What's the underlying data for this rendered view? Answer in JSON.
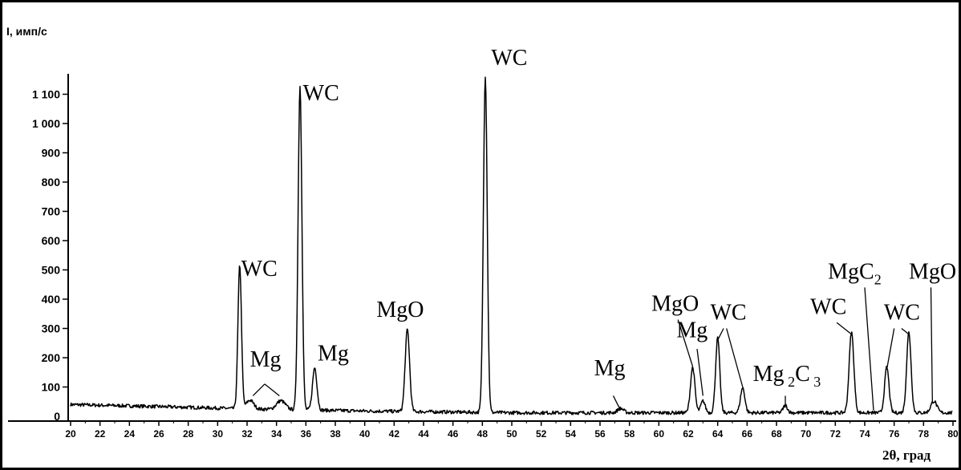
{
  "chart_data": {
    "type": "line",
    "ylabel": "I, имп/с",
    "xlabel": "2θ, град",
    "xlim": [
      20,
      80
    ],
    "ylim": [
      0,
      1150
    ],
    "x_ticks": [
      20,
      22,
      24,
      26,
      28,
      30,
      32,
      34,
      36,
      38,
      40,
      42,
      44,
      46,
      48,
      50,
      52,
      54,
      56,
      58,
      60,
      62,
      64,
      66,
      68,
      70,
      72,
      74,
      76,
      78,
      80
    ],
    "y_ticks": [
      {
        "value": 100,
        "label": "100"
      },
      {
        "value": 200,
        "label": "200"
      },
      {
        "value": 300,
        "label": "300"
      },
      {
        "value": 400,
        "label": "400"
      },
      {
        "value": 500,
        "label": "500"
      },
      {
        "value": 600,
        "label": "600"
      },
      {
        "value": 700,
        "label": "700"
      },
      {
        "value": 800,
        "label": "800"
      },
      {
        "value": 900,
        "label": "900"
      },
      {
        "value": 1000,
        "label": "1 000"
      },
      {
        "value": 1100,
        "label": "1 100"
      }
    ],
    "baseline": [
      [
        20,
        40
      ],
      [
        26,
        33
      ],
      [
        30,
        28
      ],
      [
        32,
        25
      ],
      [
        40,
        18
      ],
      [
        50,
        12
      ],
      [
        60,
        12
      ],
      [
        70,
        12
      ],
      [
        80,
        12
      ]
    ],
    "peaks": [
      {
        "x": 31.5,
        "y": 490,
        "w": 0.12
      },
      {
        "x": 32.2,
        "y": 30,
        "w": 0.25
      },
      {
        "x": 34.3,
        "y": 30,
        "w": 0.3
      },
      {
        "x": 35.6,
        "y": 1105,
        "w": 0.13
      },
      {
        "x": 36.6,
        "y": 145,
        "w": 0.15
      },
      {
        "x": 42.9,
        "y": 280,
        "w": 0.15
      },
      {
        "x": 48.2,
        "y": 1150,
        "w": 0.13
      },
      {
        "x": 57.4,
        "y": 15,
        "w": 0.2
      },
      {
        "x": 62.3,
        "y": 155,
        "w": 0.15
      },
      {
        "x": 63.0,
        "y": 40,
        "w": 0.15
      },
      {
        "x": 64.0,
        "y": 255,
        "w": 0.14
      },
      {
        "x": 65.7,
        "y": 85,
        "w": 0.15
      },
      {
        "x": 68.6,
        "y": 25,
        "w": 0.15
      },
      {
        "x": 73.1,
        "y": 275,
        "w": 0.16
      },
      {
        "x": 75.5,
        "y": 155,
        "w": 0.15
      },
      {
        "x": 77.0,
        "y": 275,
        "w": 0.15
      },
      {
        "x": 78.7,
        "y": 40,
        "w": 0.2
      }
    ],
    "annotations": [
      {
        "text": "WC",
        "sub": "",
        "sub2": "",
        "tx": 31.6,
        "ty": 480,
        "lines": []
      },
      {
        "text": "Mg",
        "sub": "",
        "sub2": "",
        "tx": 32.2,
        "ty": 170,
        "lines": [
          [
            33.2,
            110,
            32.4,
            70
          ],
          [
            33.2,
            110,
            34.2,
            70
          ]
        ]
      },
      {
        "text": "WC",
        "sub": "",
        "sub2": "",
        "tx": 35.8,
        "ty": 1080,
        "lines": []
      },
      {
        "text": "Mg",
        "sub": "",
        "sub2": "",
        "tx": 36.8,
        "ty": 190,
        "lines": []
      },
      {
        "text": "MgO",
        "sub": "",
        "sub2": "",
        "tx": 40.8,
        "ty": 340,
        "lines": []
      },
      {
        "text": "WC",
        "sub": "",
        "sub2": "",
        "tx": 48.6,
        "ty": 1200,
        "lines": []
      },
      {
        "text": "Mg",
        "sub": "",
        "sub2": "",
        "tx": 55.6,
        "ty": 140,
        "lines": [
          [
            56.9,
            70,
            57.4,
            20
          ]
        ]
      },
      {
        "text": "MgO",
        "sub": "",
        "sub2": "",
        "tx": 59.5,
        "ty": 360,
        "lines": [
          [
            61.3,
            330,
            62.3,
            170
          ]
        ]
      },
      {
        "text": "Mg",
        "sub": "",
        "sub2": "",
        "tx": 61.2,
        "ty": 270,
        "lines": [
          [
            62.6,
            230,
            63.0,
            70
          ]
        ]
      },
      {
        "text": "WC",
        "sub": "",
        "sub2": "",
        "tx": 63.5,
        "ty": 330,
        "lines": [
          [
            64.4,
            300,
            64.0,
            260
          ],
          [
            64.6,
            300,
            65.7,
            100
          ]
        ]
      },
      {
        "text": "Mg",
        "sub": "2",
        "sub2": "3",
        "tx": 66.4,
        "ty": 120,
        "lines": [
          [
            68.6,
            70,
            68.6,
            30
          ]
        ]
      },
      {
        "text": "WC",
        "sub": "",
        "sub2": "",
        "tx": 70.3,
        "ty": 350,
        "lines": [
          [
            72.1,
            320,
            73.1,
            280
          ]
        ]
      },
      {
        "text": "MgC",
        "sub": "2",
        "sub2": "",
        "tx": 71.5,
        "ty": 470,
        "lines": [
          [
            74.0,
            440,
            74.6,
            20
          ]
        ]
      },
      {
        "text": "WC",
        "sub": "",
        "sub2": "",
        "tx": 75.3,
        "ty": 330,
        "lines": [
          [
            76.0,
            300,
            75.5,
            160
          ],
          [
            76.5,
            300,
            77.0,
            280
          ]
        ]
      },
      {
        "text": "MgO",
        "sub": "",
        "sub2": "",
        "tx": 77.0,
        "ty": 470,
        "lines": [
          [
            78.5,
            440,
            78.6,
            50
          ]
        ]
      }
    ]
  }
}
